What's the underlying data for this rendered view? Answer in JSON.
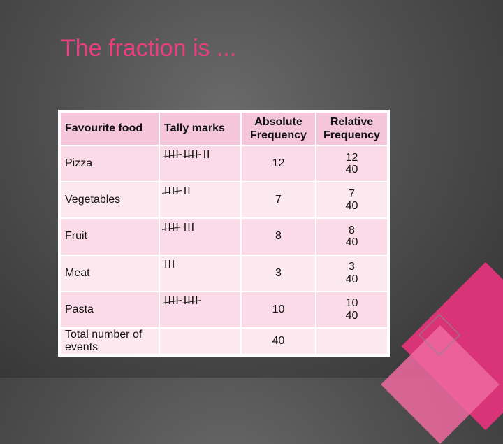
{
  "slide": {
    "title": "The fraction is ..."
  },
  "table": {
    "headers": {
      "food": "Favourite food",
      "tally": "Tally marks",
      "absolute_line1": "Absolute",
      "absolute_line2": "Frequency",
      "relative_line1": "Relative",
      "relative_line2": "Frequency"
    },
    "rows": [
      {
        "food": "Pizza",
        "tally_groups": [
          "IIII",
          "IIII"
        ],
        "tally_rest": "II",
        "absolute": "12",
        "rel_num": "12",
        "rel_den": "40"
      },
      {
        "food": "Vegetables",
        "tally_groups": [
          "IIII"
        ],
        "tally_rest": "II",
        "absolute": "7",
        "rel_num": "7",
        "rel_den": "40"
      },
      {
        "food": "Fruit",
        "tally_groups": [
          "IIII"
        ],
        "tally_rest": "III",
        "absolute": "8",
        "rel_num": "8",
        "rel_den": "40"
      },
      {
        "food": "Meat",
        "tally_groups": [],
        "tally_rest": "III",
        "absolute": "3",
        "rel_num": "3",
        "rel_den": "40"
      },
      {
        "food": "Pasta",
        "tally_groups": [
          "IIII",
          "IIII"
        ],
        "tally_rest": "",
        "absolute": "10",
        "rel_num": "10",
        "rel_den": "40"
      }
    ],
    "total": {
      "label": "Total number of events",
      "absolute": "40"
    }
  },
  "colors": {
    "title": "#e8407f",
    "header_bg": "#f5c6d9",
    "row_bg": "#fbdbe7",
    "row_alt_bg": "#fce8ef",
    "accent_pink": "#e0347a"
  }
}
